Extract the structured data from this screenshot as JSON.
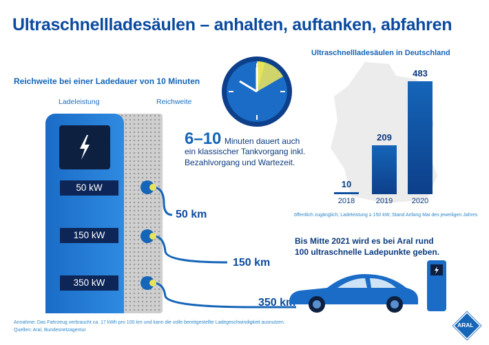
{
  "title": "Ultraschnellladesäulen – anhalten, auftanken, abfahren",
  "left": {
    "subtitle": "Reichweite bei einer Ladedauer von 10 Minuten",
    "col_power": "Ladeleistung",
    "col_range": "Reichweite",
    "rows": [
      {
        "power": "50 kW",
        "range": "50 km"
      },
      {
        "power": "150 kW",
        "range": "150 km"
      },
      {
        "power": "350 kW",
        "range": "350 km"
      }
    ]
  },
  "clock": {
    "big": "6–10",
    "line1": "Minuten dauert auch",
    "line2": "ein klassischer Tankvorgang inkl.",
    "line3": "Bezahlvorgang und Wartezeit."
  },
  "chart_data": {
    "type": "bar",
    "title": "Ultraschnellladesäulen in Deutschland",
    "categories": [
      "2018",
      "2019",
      "2020"
    ],
    "values": [
      10,
      209,
      483
    ],
    "value_labels": [
      "10",
      "209",
      "483"
    ],
    "footnote": "öffentlich zugänglich; Ladeleistung ≥ 150 kW; Stand Anfang Mai des jeweiligen Jahres",
    "color": "#1565b8"
  },
  "aral": {
    "line1": "Bis Mitte 2021 wird es bei Aral rund",
    "line2": "100 ultraschnelle Ladepunkte geben.",
    "logo": "ARAL"
  },
  "footer": {
    "assumption": "Annahme: Das Fahrzeug verbraucht ca. 17 kWh pro 100 km und kann die volle bereitgestellte Ladegeschwindigkeit ausnutzen.",
    "sources": "Quellen: Aral, Bundesnetzagentur"
  },
  "colors": {
    "brand": "#0b4a9e",
    "accent": "#e8e35a"
  }
}
